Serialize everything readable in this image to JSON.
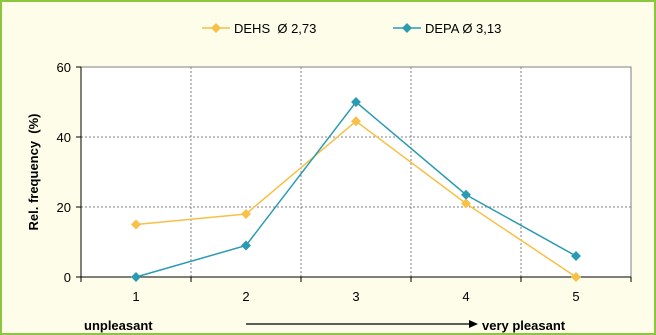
{
  "chart_data": {
    "type": "line",
    "x": [
      1,
      2,
      3,
      4,
      5
    ],
    "series": [
      {
        "name": "DEHS  Ø 2,73",
        "values": [
          15,
          18,
          44.5,
          21,
          0
        ],
        "color": "#f7c046"
      },
      {
        "name": "DEPA Ø 3,13",
        "values": [
          0,
          9,
          50,
          23.5,
          6
        ],
        "color": "#2a9bb2"
      }
    ],
    "xticks": [
      "1",
      "2",
      "3",
      "4",
      "5"
    ],
    "yticks": [
      "0",
      "20",
      "40",
      "60"
    ],
    "ylabel": "Rel. frequency  (%)",
    "ylim": [
      0,
      60
    ],
    "xlim": [
      0.5,
      5.5
    ],
    "grid": true,
    "legend_position": "top",
    "scale_labels": {
      "left": "unpleasant",
      "right": "very pleasant"
    }
  },
  "colors": {
    "frame_border": "#8cc63f",
    "background": "#fdfde9",
    "plot_background": "#ffffff",
    "grid": "#808080"
  }
}
